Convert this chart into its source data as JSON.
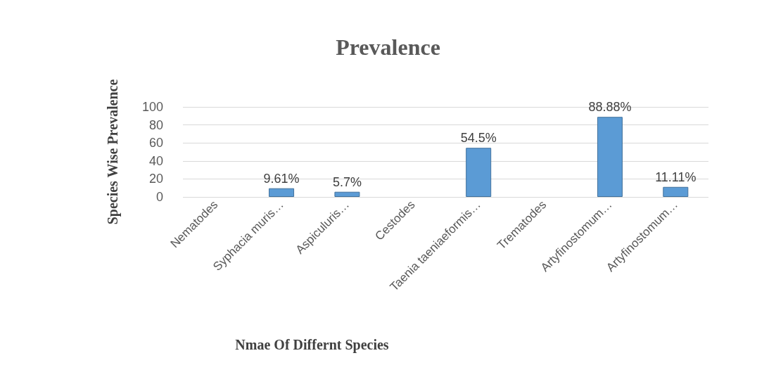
{
  "chart_data": {
    "type": "bar",
    "title": "Prevalence",
    "xlabel": "Nmae Of Differnt Species",
    "ylabel": "Species Wise Prevalence",
    "categories": [
      "Nematodes",
      "Syphacia muris…",
      "Aspiculuris…",
      "Cestodes",
      "Taenia taeniaeformis…",
      "Trematodes",
      "Artyfinostomum…",
      "Artyfinostomum…"
    ],
    "values": [
      null,
      9.61,
      5.7,
      null,
      54.5,
      null,
      88.88,
      11.11
    ],
    "value_labels": [
      null,
      "9.61%",
      "5.7%",
      null,
      "54.5%",
      null,
      "88.88%",
      "11.11%"
    ],
    "color": "#5b9bd5",
    "ylim": [
      0,
      100
    ],
    "yticks": [
      0,
      20,
      40,
      60,
      80,
      100
    ],
    "grid": "y"
  }
}
